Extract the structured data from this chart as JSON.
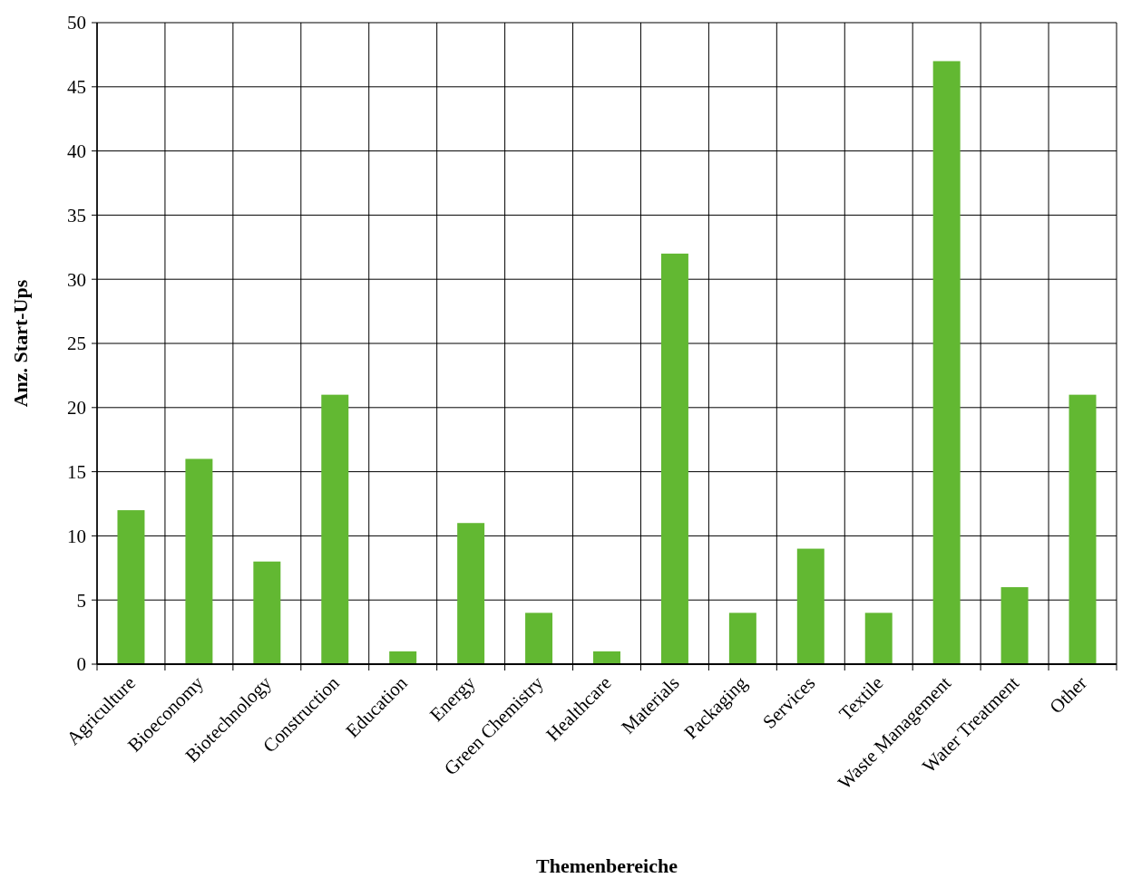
{
  "chart_data": {
    "type": "bar",
    "xlabel": "Themenbereiche",
    "ylabel": "Anz. Start-Ups",
    "categories": [
      "Agriculture",
      "Bioeconomy",
      "Biotechnology",
      "Construction",
      "Education",
      "Energy",
      "Green Chemistry",
      "Healthcare",
      "Materials",
      "Packaging",
      "Services",
      "Textile",
      "Waste Management",
      "Water Treatment",
      "Other"
    ],
    "values": [
      12,
      16,
      8,
      21,
      1,
      11,
      4,
      1,
      32,
      4,
      9,
      4,
      47,
      6,
      21
    ],
    "color": "#62b832",
    "ylim": [
      0,
      50
    ],
    "yticks": [
      0,
      5,
      10,
      15,
      20,
      25,
      30,
      35,
      40,
      45,
      50
    ],
    "grid": true
  }
}
